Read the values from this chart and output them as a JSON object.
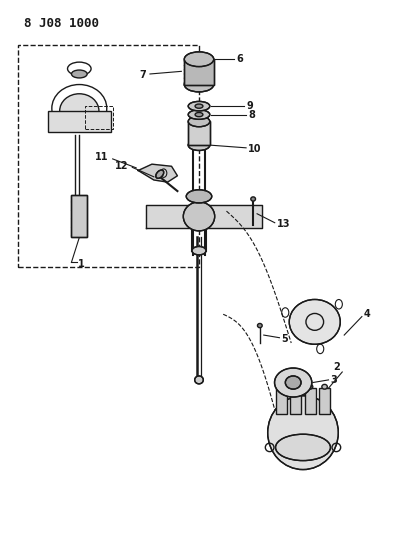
{
  "title": "8 J08 1000",
  "bg_color": "#ffffff",
  "line_color": "#1a1a1a",
  "figsize": [
    3.98,
    5.33
  ],
  "dpi": 100
}
